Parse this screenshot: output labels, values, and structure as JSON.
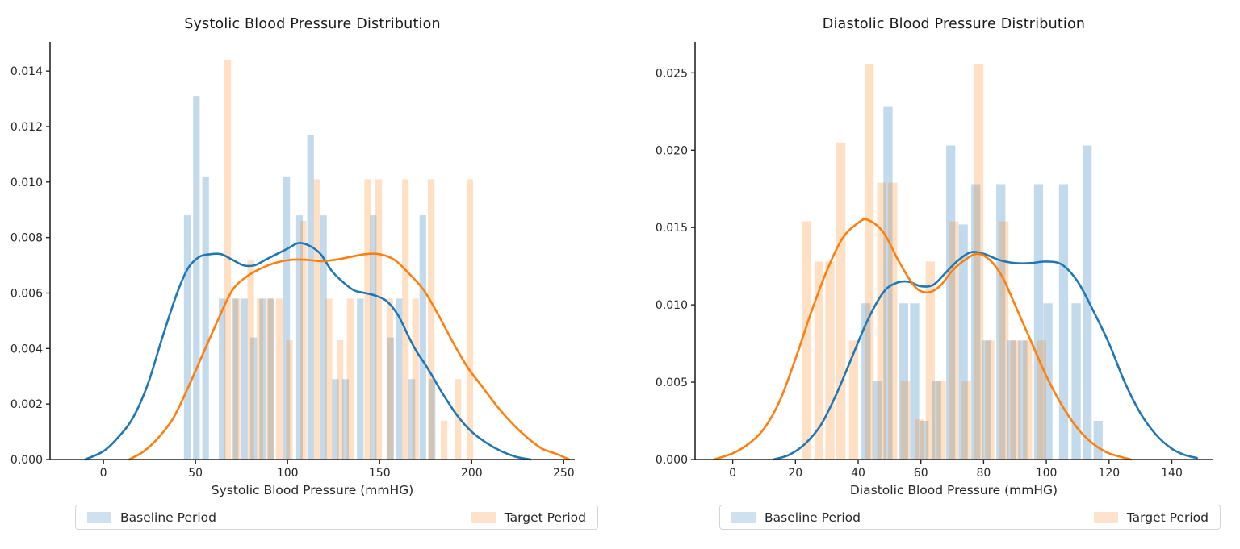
{
  "figure": {
    "background": "#ffffff",
    "text_color": "#262626",
    "axis_color": "#262626"
  },
  "legend": {
    "baseline_label": "Baseline Period",
    "target_label": "Target Period",
    "border_color": "#d4d4d4",
    "baseline_swatch_color": "#cfe0ef",
    "target_swatch_color": "#fde3cc"
  },
  "colors": {
    "baseline_line": "#1f77b4",
    "target_line": "#ff7f0e",
    "baseline_fill": "rgba(31,119,180,0.27)",
    "target_fill": "rgba(255,127,14,0.24)"
  },
  "chart_data": [
    {
      "type": "histogram+kde",
      "title": "Systolic Blood Pressure Distribution",
      "xlabel": "Systolic Blood Pressure (mmHG)",
      "ylabel": "",
      "grid": false,
      "legend_position": "below",
      "xlim": [
        -29,
        256
      ],
      "ylim": [
        0,
        0.01505
      ],
      "xticks": [
        0,
        50,
        100,
        150,
        200,
        250
      ],
      "yticks": [
        0,
        0.002,
        0.004,
        0.006,
        0.008,
        0.01,
        0.012,
        0.014
      ],
      "ytick_labels": [
        "0.000",
        "0.002",
        "0.004",
        "0.006",
        "0.008",
        "0.010",
        "0.012",
        "0.014"
      ],
      "bar_width_units": 3.6,
      "series": [
        {
          "name": "Baseline Period",
          "line_color": "#1f77b4",
          "fill_color": "rgba(31,119,180,0.27)",
          "bars": [
            [
              45.5,
              0.0088
            ],
            [
              50.5,
              0.0131
            ],
            [
              55.5,
              0.0102
            ],
            [
              64.5,
              0.0058
            ],
            [
              71.5,
              0.0058
            ],
            [
              76.5,
              0.0058
            ],
            [
              81.5,
              0.0044
            ],
            [
              86.5,
              0.0058
            ],
            [
              91,
              0.0058
            ],
            [
              99.5,
              0.0102
            ],
            [
              106.5,
              0.0088
            ],
            [
              112.5,
              0.0117
            ],
            [
              119.5,
              0.0088
            ],
            [
              126,
              0.0029
            ],
            [
              131.5,
              0.0029
            ],
            [
              139.5,
              0.0058
            ],
            [
              146.5,
              0.0088
            ],
            [
              156,
              0.0044
            ],
            [
              160.5,
              0.0058
            ],
            [
              167.5,
              0.0029
            ],
            [
              173.5,
              0.0088
            ],
            [
              178.5,
              0.0029
            ]
          ],
          "kde": [
            [
              -10,
              0
            ],
            [
              0,
              0.0003
            ],
            [
              8,
              0.0008
            ],
            [
              16,
              0.0015
            ],
            [
              24,
              0.0027
            ],
            [
              32,
              0.0044
            ],
            [
              40,
              0.006
            ],
            [
              46,
              0.0069
            ],
            [
              52,
              0.0073
            ],
            [
              58,
              0.0074
            ],
            [
              64,
              0.0074
            ],
            [
              70,
              0.0072
            ],
            [
              76,
              0.007
            ],
            [
              82,
              0.007
            ],
            [
              88,
              0.0072
            ],
            [
              94,
              0.0074
            ],
            [
              100,
              0.0076
            ],
            [
              106,
              0.0078
            ],
            [
              112,
              0.0077
            ],
            [
              118,
              0.0074
            ],
            [
              124,
              0.0068
            ],
            [
              130,
              0.0064
            ],
            [
              136,
              0.0061
            ],
            [
              142,
              0.006
            ],
            [
              148,
              0.0059
            ],
            [
              154,
              0.0057
            ],
            [
              160,
              0.0052
            ],
            [
              166,
              0.0044
            ],
            [
              170,
              0.0039
            ],
            [
              176,
              0.0033
            ],
            [
              184,
              0.0024
            ],
            [
              192,
              0.0016
            ],
            [
              200,
              0.001
            ],
            [
              208,
              0.0006
            ],
            [
              216,
              0.0003
            ],
            [
              224,
              0.0001
            ],
            [
              232,
              0
            ]
          ]
        },
        {
          "name": "Target Period",
          "line_color": "#ff7f0e",
          "fill_color": "rgba(255,127,14,0.24)",
          "bars": [
            [
              67.5,
              0.0144
            ],
            [
              72.5,
              0.0058
            ],
            [
              80,
              0.0072
            ],
            [
              85,
              0.0058
            ],
            [
              90.5,
              0.0058
            ],
            [
              95.5,
              0.0058
            ],
            [
              101,
              0.0043
            ],
            [
              108.5,
              0.0086
            ],
            [
              116,
              0.0101
            ],
            [
              122.5,
              0.0058
            ],
            [
              128.5,
              0.0043
            ],
            [
              134,
              0.0058
            ],
            [
              143.5,
              0.0101
            ],
            [
              149.5,
              0.0101
            ],
            [
              155.5,
              0.0058
            ],
            [
              164,
              0.0101
            ],
            [
              169.5,
              0.0058
            ],
            [
              178,
              0.0101
            ],
            [
              185,
              0.0014
            ],
            [
              192.5,
              0.0029
            ],
            [
              199,
              0.0101
            ]
          ],
          "kde": [
            [
              14,
              0
            ],
            [
              22,
              0.0003
            ],
            [
              30,
              0.0008
            ],
            [
              38,
              0.0015
            ],
            [
              46,
              0.0026
            ],
            [
              54,
              0.0038
            ],
            [
              62,
              0.005
            ],
            [
              70,
              0.0061
            ],
            [
              78,
              0.0066
            ],
            [
              86,
              0.0069
            ],
            [
              94,
              0.0071
            ],
            [
              102,
              0.0072
            ],
            [
              110,
              0.0072
            ],
            [
              118,
              0.00715
            ],
            [
              126,
              0.0072
            ],
            [
              134,
              0.0073
            ],
            [
              142,
              0.0074
            ],
            [
              150,
              0.0074
            ],
            [
              158,
              0.0072
            ],
            [
              166,
              0.0067
            ],
            [
              174,
              0.0061
            ],
            [
              182,
              0.0052
            ],
            [
              190,
              0.0042
            ],
            [
              198,
              0.0033
            ],
            [
              206,
              0.0026
            ],
            [
              214,
              0.0019
            ],
            [
              222,
              0.0013
            ],
            [
              230,
              0.0008
            ],
            [
              238,
              0.0004
            ],
            [
              246,
              0.0002
            ],
            [
              253,
              0
            ]
          ]
        }
      ]
    },
    {
      "type": "histogram+kde",
      "title": "Diastolic Blood Pressure Distribution",
      "xlabel": "Diastolic Blood Pressure (mmHG)",
      "ylabel": "",
      "grid": false,
      "legend_position": "below",
      "xlim": [
        -12,
        153
      ],
      "ylim": [
        0,
        0.027
      ],
      "xticks": [
        0,
        20,
        40,
        60,
        80,
        100,
        120,
        140
      ],
      "yticks": [
        0,
        0.005,
        0.01,
        0.015,
        0.02,
        0.025
      ],
      "ytick_labels": [
        "0.000",
        "0.005",
        "0.010",
        "0.015",
        "0.020",
        "0.025"
      ],
      "bar_width_units": 2.9,
      "series": [
        {
          "name": "Baseline Period",
          "line_color": "#1f77b4",
          "fill_color": "rgba(31,119,180,0.27)",
          "bars": [
            [
              42.5,
              0.0101
            ],
            [
              46,
              0.0051
            ],
            [
              49.5,
              0.0228
            ],
            [
              54.5,
              0.0101
            ],
            [
              58,
              0.0101
            ],
            [
              61,
              0.0025
            ],
            [
              65,
              0.0051
            ],
            [
              69.5,
              0.0203
            ],
            [
              73.5,
              0.0152
            ],
            [
              77.5,
              0.0178
            ],
            [
              81,
              0.0077
            ],
            [
              85.5,
              0.0178
            ],
            [
              89,
              0.0077
            ],
            [
              92.5,
              0.0077
            ],
            [
              97.5,
              0.0178
            ],
            [
              100.5,
              0.0101
            ],
            [
              105.5,
              0.0178
            ],
            [
              109.5,
              0.0101
            ],
            [
              113,
              0.0203
            ],
            [
              116.5,
              0.0025
            ]
          ],
          "kde": [
            [
              13,
              0
            ],
            [
              18,
              0.0003
            ],
            [
              23,
              0.001
            ],
            [
              28,
              0.0022
            ],
            [
              33,
              0.0042
            ],
            [
              38,
              0.0066
            ],
            [
              43,
              0.009
            ],
            [
              48,
              0.0108
            ],
            [
              52,
              0.0114
            ],
            [
              56,
              0.0115
            ],
            [
              60,
              0.0112
            ],
            [
              64,
              0.0113
            ],
            [
              68,
              0.0121
            ],
            [
              72,
              0.0129
            ],
            [
              76,
              0.0134
            ],
            [
              80,
              0.0133
            ],
            [
              85,
              0.0129
            ],
            [
              90,
              0.0127
            ],
            [
              95,
              0.0127
            ],
            [
              100,
              0.0128
            ],
            [
              105,
              0.0126
            ],
            [
              110,
              0.0115
            ],
            [
              115,
              0.0096
            ],
            [
              120,
              0.0075
            ],
            [
              125,
              0.005
            ],
            [
              130,
              0.003
            ],
            [
              135,
              0.0016
            ],
            [
              140,
              0.0007
            ],
            [
              144,
              0.0003
            ],
            [
              148,
              0.0001
            ]
          ]
        },
        {
          "name": "Target Period",
          "line_color": "#ff7f0e",
          "fill_color": "rgba(255,127,14,0.24)",
          "bars": [
            [
              23.5,
              0.0154
            ],
            [
              27.5,
              0.0128
            ],
            [
              31,
              0.0128
            ],
            [
              34.5,
              0.0205
            ],
            [
              38.5,
              0.0077
            ],
            [
              43.5,
              0.0256
            ],
            [
              47.5,
              0.0179
            ],
            [
              51,
              0.0179
            ],
            [
              55,
              0.0051
            ],
            [
              59.5,
              0.0026
            ],
            [
              63,
              0.0128
            ],
            [
              66.5,
              0.0051
            ],
            [
              70.5,
              0.0154
            ],
            [
              74.5,
              0.0051
            ],
            [
              78.5,
              0.0256
            ],
            [
              82,
              0.0077
            ],
            [
              86.5,
              0.0154
            ],
            [
              90,
              0.0077
            ],
            [
              94,
              0.0077
            ],
            [
              98.5,
              0.0077
            ]
          ],
          "kde": [
            [
              -6,
              0
            ],
            [
              0,
              0.0004
            ],
            [
              5,
              0.001
            ],
            [
              10,
              0.002
            ],
            [
              15,
              0.0038
            ],
            [
              20,
              0.0065
            ],
            [
              25,
              0.0095
            ],
            [
              30,
              0.0122
            ],
            [
              35,
              0.0143
            ],
            [
              40,
              0.0153
            ],
            [
              43,
              0.0155
            ],
            [
              48,
              0.0147
            ],
            [
              53,
              0.0128
            ],
            [
              58,
              0.0112
            ],
            [
              62,
              0.0108
            ],
            [
              66,
              0.0112
            ],
            [
              70,
              0.0122
            ],
            [
              74,
              0.0129
            ],
            [
              78,
              0.0133
            ],
            [
              82,
              0.0129
            ],
            [
              86,
              0.0118
            ],
            [
              90,
              0.01
            ],
            [
              95,
              0.0077
            ],
            [
              100,
              0.0054
            ],
            [
              105,
              0.0035
            ],
            [
              110,
              0.002
            ],
            [
              115,
              0.001
            ],
            [
              120,
              0.0004
            ],
            [
              127,
              0
            ]
          ]
        }
      ]
    }
  ]
}
